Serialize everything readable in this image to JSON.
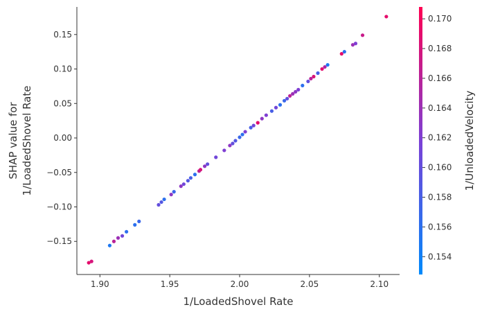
{
  "chart_data": {
    "type": "scatter",
    "title": "",
    "xlabel": "1/LoadedShovel Rate",
    "ylabel_line1": "SHAP value for",
    "ylabel_line2": "1/LoadedShovel Rate",
    "xlim": [
      1.8835,
      2.1145
    ],
    "ylim": [
      -0.198,
      0.19
    ],
    "xticks": [
      "1.90",
      "1.95",
      "2.00",
      "2.05",
      "2.10"
    ],
    "yticks": [
      "−0.15",
      "−0.10",
      "−0.05",
      "0.00",
      "0.05",
      "0.10",
      "0.15"
    ],
    "colorbar": {
      "label": "1/UnloadedVelocity",
      "range": [
        0.1528,
        0.1708
      ],
      "ticks": [
        "0.154",
        "0.156",
        "0.158",
        "0.160",
        "0.162",
        "0.164",
        "0.166",
        "0.168",
        "0.170"
      ],
      "color_low": "#008afb",
      "color_mid": "#7c40d6",
      "color_high": "#ff0052"
    },
    "points": [
      {
        "x": 1.892,
        "y": -0.181,
        "c": 0.169
      },
      {
        "x": 1.894,
        "y": -0.179,
        "c": 0.168
      },
      {
        "x": 1.907,
        "y": -0.156,
        "c": 0.155
      },
      {
        "x": 1.91,
        "y": -0.15,
        "c": 0.166
      },
      {
        "x": 1.913,
        "y": -0.145,
        "c": 0.164
      },
      {
        "x": 1.916,
        "y": -0.142,
        "c": 0.161
      },
      {
        "x": 1.919,
        "y": -0.136,
        "c": 0.156
      },
      {
        "x": 1.925,
        "y": -0.126,
        "c": 0.156
      },
      {
        "x": 1.928,
        "y": -0.121,
        "c": 0.157
      },
      {
        "x": 1.942,
        "y": -0.097,
        "c": 0.16
      },
      {
        "x": 1.944,
        "y": -0.093,
        "c": 0.159
      },
      {
        "x": 1.946,
        "y": -0.089,
        "c": 0.156
      },
      {
        "x": 1.951,
        "y": -0.082,
        "c": 0.163
      },
      {
        "x": 1.953,
        "y": -0.078,
        "c": 0.157
      },
      {
        "x": 1.958,
        "y": -0.07,
        "c": 0.163
      },
      {
        "x": 1.96,
        "y": -0.067,
        "c": 0.161
      },
      {
        "x": 1.963,
        "y": -0.062,
        "c": 0.159
      },
      {
        "x": 1.965,
        "y": -0.058,
        "c": 0.158
      },
      {
        "x": 1.968,
        "y": -0.053,
        "c": 0.156
      },
      {
        "x": 1.971,
        "y": -0.048,
        "c": 0.166
      },
      {
        "x": 1.972,
        "y": -0.046,
        "c": 0.168
      },
      {
        "x": 1.975,
        "y": -0.041,
        "c": 0.163
      },
      {
        "x": 1.977,
        "y": -0.038,
        "c": 0.16
      },
      {
        "x": 1.983,
        "y": -0.028,
        "c": 0.161
      },
      {
        "x": 1.989,
        "y": -0.018,
        "c": 0.162
      },
      {
        "x": 1.993,
        "y": -0.011,
        "c": 0.163
      },
      {
        "x": 1.995,
        "y": -0.008,
        "c": 0.16
      },
      {
        "x": 1.997,
        "y": -0.004,
        "c": 0.159
      },
      {
        "x": 2.0,
        "y": 0.001,
        "c": 0.157
      },
      {
        "x": 2.002,
        "y": 0.005,
        "c": 0.156
      },
      {
        "x": 2.004,
        "y": 0.009,
        "c": 0.162
      },
      {
        "x": 2.008,
        "y": 0.015,
        "c": 0.158
      },
      {
        "x": 2.01,
        "y": 0.018,
        "c": 0.161
      },
      {
        "x": 2.013,
        "y": 0.022,
        "c": 0.169
      },
      {
        "x": 2.016,
        "y": 0.028,
        "c": 0.163
      },
      {
        "x": 2.019,
        "y": 0.033,
        "c": 0.162
      },
      {
        "x": 2.023,
        "y": 0.039,
        "c": 0.158
      },
      {
        "x": 2.026,
        "y": 0.044,
        "c": 0.161
      },
      {
        "x": 2.029,
        "y": 0.048,
        "c": 0.156
      },
      {
        "x": 2.032,
        "y": 0.054,
        "c": 0.157
      },
      {
        "x": 2.034,
        "y": 0.057,
        "c": 0.16
      },
      {
        "x": 2.036,
        "y": 0.061,
        "c": 0.166
      },
      {
        "x": 2.038,
        "y": 0.064,
        "c": 0.164
      },
      {
        "x": 2.04,
        "y": 0.067,
        "c": 0.163
      },
      {
        "x": 2.042,
        "y": 0.07,
        "c": 0.162
      },
      {
        "x": 2.045,
        "y": 0.076,
        "c": 0.156
      },
      {
        "x": 2.049,
        "y": 0.082,
        "c": 0.16
      },
      {
        "x": 2.051,
        "y": 0.086,
        "c": 0.166
      },
      {
        "x": 2.053,
        "y": 0.089,
        "c": 0.168
      },
      {
        "x": 2.056,
        "y": 0.094,
        "c": 0.158
      },
      {
        "x": 2.059,
        "y": 0.1,
        "c": 0.169
      },
      {
        "x": 2.061,
        "y": 0.103,
        "c": 0.165
      },
      {
        "x": 2.063,
        "y": 0.106,
        "c": 0.155
      },
      {
        "x": 2.073,
        "y": 0.122,
        "c": 0.169
      },
      {
        "x": 2.075,
        "y": 0.125,
        "c": 0.156
      },
      {
        "x": 2.081,
        "y": 0.135,
        "c": 0.164
      },
      {
        "x": 2.083,
        "y": 0.137,
        "c": 0.162
      },
      {
        "x": 2.088,
        "y": 0.149,
        "c": 0.167
      },
      {
        "x": 2.105,
        "y": 0.176,
        "c": 0.169
      }
    ]
  }
}
